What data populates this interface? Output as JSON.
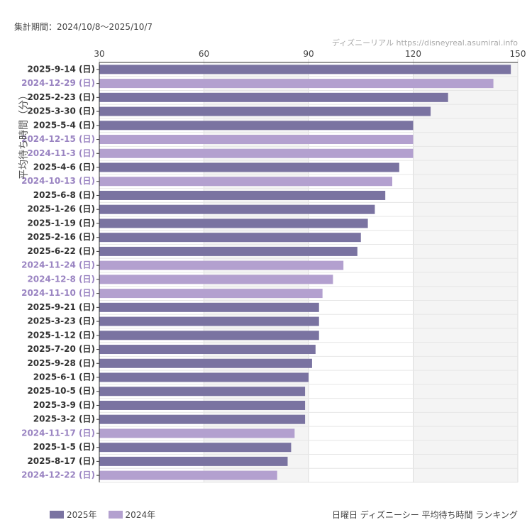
{
  "header": {
    "period": "集計期間：2024/10/8〜2025/10/7",
    "source": "ディズニーリアル https://disneyreal.asumirai.info"
  },
  "footer": {
    "title": "日曜日 ディズニーシー 平均待ち時間 ランキング"
  },
  "colors": {
    "2025年": "#7a73a1",
    "2024年": "#b3a0cf",
    "label_2025": "#333333",
    "label_2024": "#9a84c2"
  },
  "chart_data": {
    "type": "bar",
    "orientation": "horizontal",
    "ylabel": "平均待ち時間（分）",
    "xlim": [
      30,
      150
    ],
    "xticks": [
      30,
      60,
      90,
      120,
      150
    ],
    "grid": true,
    "legend_placement": "bottom-left",
    "legend": [
      "2025年",
      "2024年"
    ],
    "categories": [
      "2025-9-14 (日)",
      "2024-12-29 (日)",
      "2025-2-23 (日)",
      "2025-3-30 (日)",
      "2025-5-4 (日)",
      "2024-12-15 (日)",
      "2024-11-3 (日)",
      "2025-4-6 (日)",
      "2024-10-13 (日)",
      "2025-6-8 (日)",
      "2025-1-26 (日)",
      "2025-1-19 (日)",
      "2025-2-16 (日)",
      "2025-6-22 (日)",
      "2024-11-24 (日)",
      "2024-12-8 (日)",
      "2024-11-10 (日)",
      "2025-9-21 (日)",
      "2025-3-23 (日)",
      "2025-1-12 (日)",
      "2025-7-20 (日)",
      "2025-9-28 (日)",
      "2025-6-1 (日)",
      "2025-10-5 (日)",
      "2025-3-9 (日)",
      "2025-3-2 (日)",
      "2024-11-17 (日)",
      "2025-1-5 (日)",
      "2025-8-17 (日)",
      "2024-12-22 (日)"
    ],
    "values": [
      148,
      143,
      130,
      125,
      120,
      120,
      120,
      116,
      114,
      112,
      109,
      107,
      105,
      104,
      100,
      97,
      94,
      93,
      93,
      93,
      92,
      91,
      90,
      89,
      89,
      89,
      86,
      85,
      84,
      81
    ],
    "series_of_category": [
      "2025年",
      "2024年",
      "2025年",
      "2025年",
      "2025年",
      "2024年",
      "2024年",
      "2025年",
      "2024年",
      "2025年",
      "2025年",
      "2025年",
      "2025年",
      "2025年",
      "2024年",
      "2024年",
      "2024年",
      "2025年",
      "2025年",
      "2025年",
      "2025年",
      "2025年",
      "2025年",
      "2025年",
      "2025年",
      "2025年",
      "2024年",
      "2025年",
      "2025年",
      "2024年"
    ]
  }
}
